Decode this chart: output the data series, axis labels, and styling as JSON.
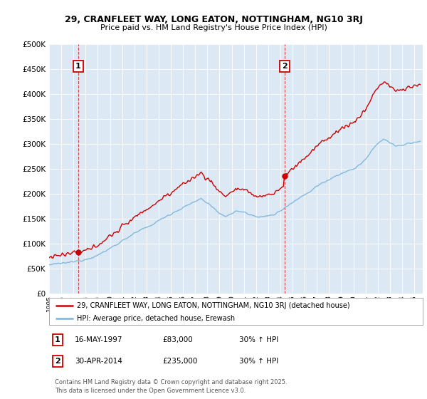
{
  "title": "29, CRANFLEET WAY, LONG EATON, NOTTINGHAM, NG10 3RJ",
  "subtitle": "Price paid vs. HM Land Registry's House Price Index (HPI)",
  "legend_line1": "29, CRANFLEET WAY, LONG EATON, NOTTINGHAM, NG10 3RJ (detached house)",
  "legend_line2": "HPI: Average price, detached house, Erewash",
  "annotation1_label": "1",
  "annotation1_date": "16-MAY-1997",
  "annotation1_price": "£83,000",
  "annotation1_hpi": "30% ↑ HPI",
  "annotation2_label": "2",
  "annotation2_date": "30-APR-2014",
  "annotation2_price": "£235,000",
  "annotation2_hpi": "30% ↑ HPI",
  "footer": "Contains HM Land Registry data © Crown copyright and database right 2025.\nThis data is licensed under the Open Government Licence v3.0.",
  "background_color": "#dce9f5",
  "hpi_line_color": "#7ab3d9",
  "price_line_color": "#cc0000",
  "marker_color": "#cc0000",
  "dashed_line_color": "#cc0000",
  "ylim": [
    0,
    500000
  ],
  "yticks": [
    0,
    50000,
    100000,
    150000,
    200000,
    250000,
    300000,
    350000,
    400000,
    450000,
    500000
  ],
  "sale1_year": 1997.37,
  "sale1_price": 83000,
  "sale2_year": 2014.33,
  "sale2_price": 235000
}
